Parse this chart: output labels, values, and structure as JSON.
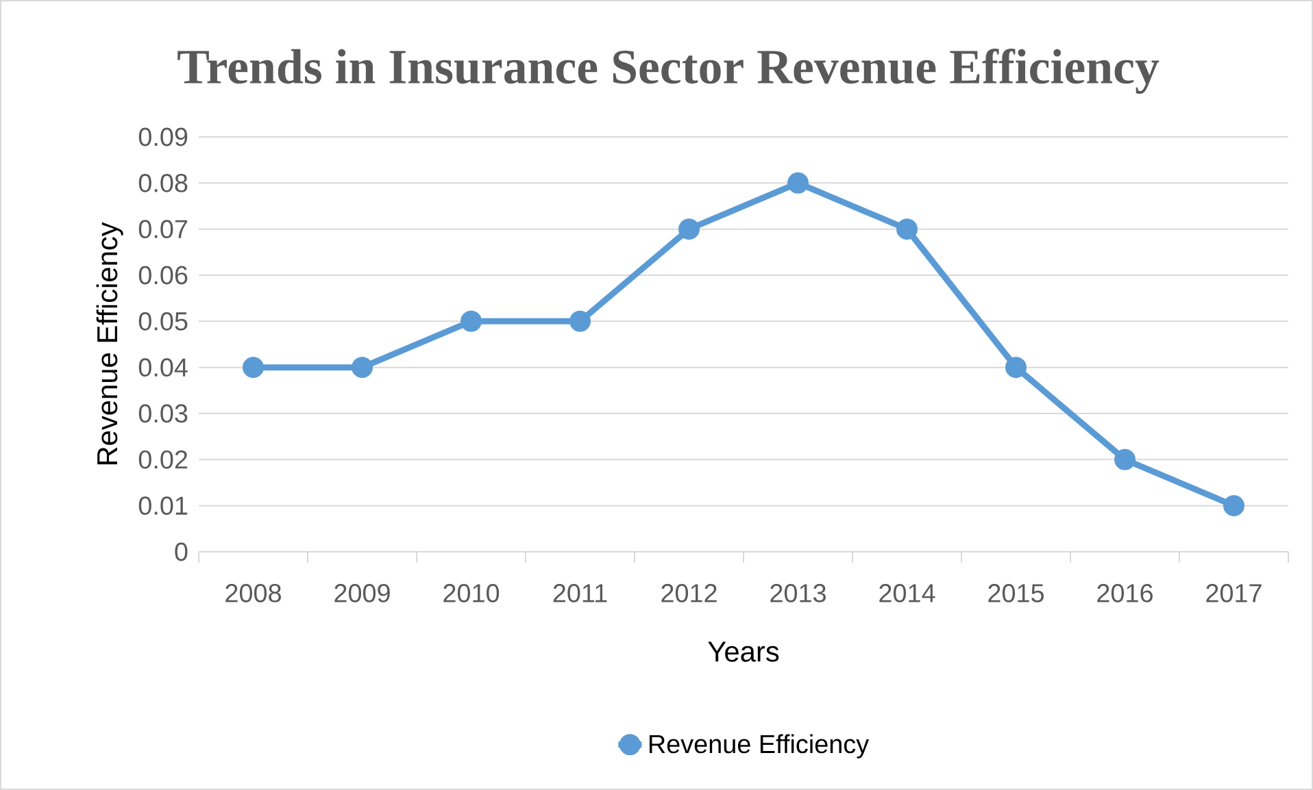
{
  "chart_data": {
    "type": "line",
    "title": "Trends in Insurance Sector Revenue Efficiency",
    "xlabel": "Years",
    "ylabel": "Revenue Efficiency",
    "categories": [
      "2008",
      "2009",
      "2010",
      "2011",
      "2012",
      "2013",
      "2014",
      "2015",
      "2016",
      "2017"
    ],
    "series": [
      {
        "name": "Revenue Efficiency",
        "color": "#5b9bd5",
        "values": [
          0.04,
          0.04,
          0.05,
          0.05,
          0.07,
          0.08,
          0.07,
          0.04,
          0.02,
          0.01
        ]
      }
    ],
    "ylim": [
      0,
      0.09
    ],
    "yticks": [
      0,
      0.01,
      0.02,
      0.03,
      0.04,
      0.05,
      0.06,
      0.07,
      0.08,
      0.09
    ],
    "grid": "y",
    "legend": "bottom",
    "marker": "circle",
    "line_style": "solid"
  }
}
